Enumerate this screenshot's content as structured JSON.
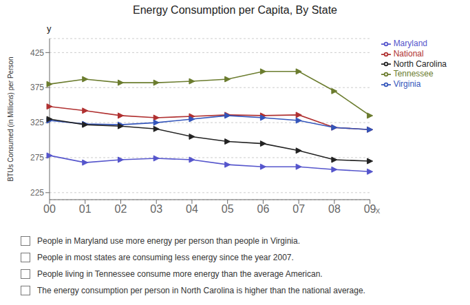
{
  "chart_data": {
    "type": "line",
    "title": "Energy Consumption per Capita, By State",
    "xlabel": "x",
    "ylabel": "BTUs Consumed (in Millions) per Person",
    "annotations": [
      "y",
      "People in Maryland use more energy per person than people in Virginia.",
      "People in most states are consuming less energy since the year 2007.",
      "People living in Tennessee consume more energy than the average American.",
      "The energy consumption per person in North Carolina is higher than the national average."
    ],
    "categories": [
      "00",
      "01",
      "02",
      "03",
      "04",
      "05",
      "06",
      "07",
      "08",
      "09"
    ],
    "series": [
      {
        "name": "Tennessee",
        "color": "#6b7c2e",
        "values": [
          380,
          387,
          382,
          382,
          384,
          387,
          398,
          398,
          370,
          335
        ]
      },
      {
        "name": "National",
        "color": "#b03030",
        "values": [
          348,
          342,
          335,
          332,
          334,
          336,
          335,
          336,
          318,
          315
        ]
      },
      {
        "name": "Virginia",
        "color": "#3355bb",
        "values": [
          328,
          323,
          322,
          325,
          330,
          335,
          332,
          328,
          318,
          315
        ]
      },
      {
        "name": "North Carolina",
        "color": "#222222",
        "values": [
          330,
          322,
          320,
          316,
          305,
          298,
          295,
          285,
          272,
          270
        ]
      },
      {
        "name": "Maryland",
        "color": "#5555cc",
        "values": [
          278,
          268,
          272,
          274,
          272,
          265,
          262,
          262,
          258,
          255
        ]
      }
    ],
    "ylim": [
      215,
      445
    ],
    "yticks": [
      225,
      275,
      325,
      375,
      425
    ],
    "grid": true,
    "legend": "right",
    "marker": "triangle-right"
  }
}
